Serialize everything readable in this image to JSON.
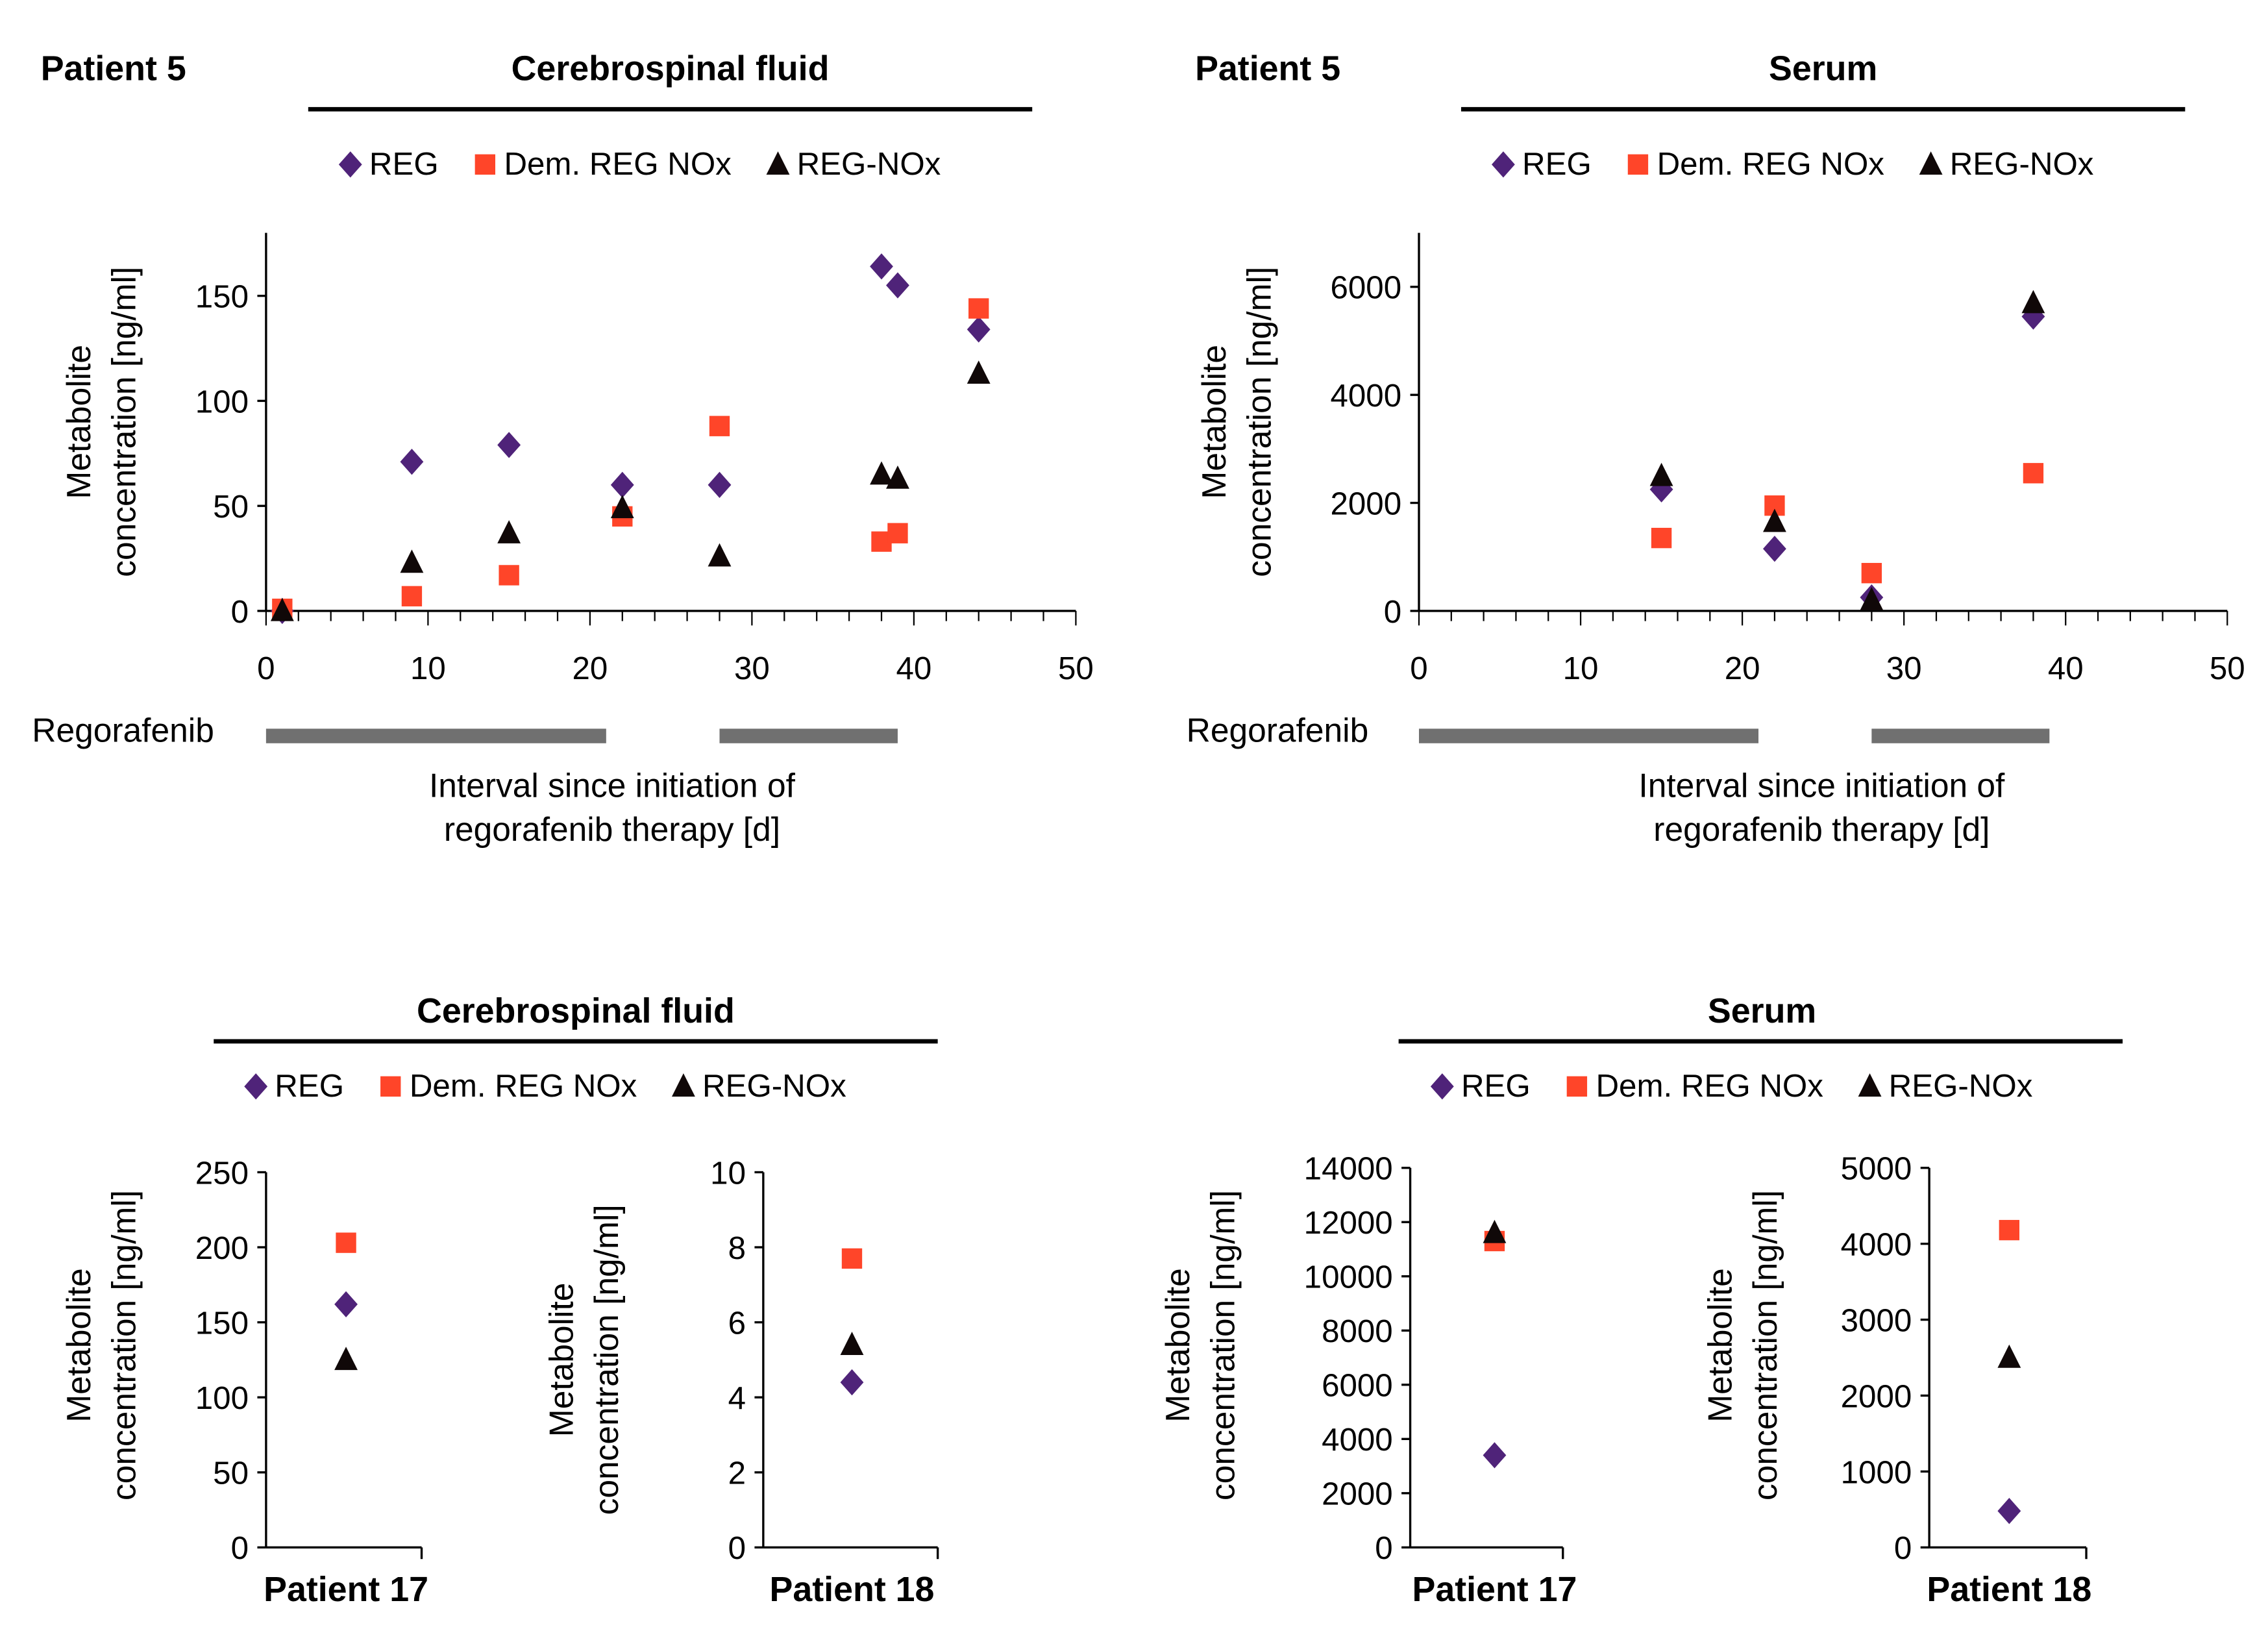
{
  "panels": {
    "top_left": {
      "patient": "Patient 5",
      "title": "Cerebrospinal fluid"
    },
    "top_right": {
      "patient": "Patient 5",
      "title": "Serum"
    },
    "bottom_left": {
      "title": "Cerebrospinal fluid"
    },
    "bottom_right": {
      "title": "Serum"
    }
  },
  "legend": [
    "REG",
    "Dem. REG NOx",
    "REG-NOx"
  ],
  "colors": {
    "REG": "#4F2379",
    "Dem. REG NOx": "#FF4529",
    "REG-NOx": "#100808"
  },
  "ylabel": [
    "Metabolite",
    "concentration [ng/ml]"
  ],
  "xlabel": [
    "Interval since initiation of",
    "regorafenib therapy [d]"
  ],
  "regorafenib_label": "Regorafenib",
  "chart_data": [
    {
      "type": "scatter",
      "panel": "Patient 5 – Cerebrospinal fluid",
      "xlim": [
        0,
        50
      ],
      "xticks": [
        0,
        10,
        20,
        30,
        40,
        50
      ],
      "ylim": [
        0,
        180
      ],
      "yticks": [
        0,
        50,
        100,
        150
      ],
      "regorafenib_periods": [
        [
          0,
          21
        ],
        [
          28,
          39
        ]
      ],
      "series": [
        {
          "name": "REG",
          "x": [
            1,
            9,
            15,
            22,
            28,
            38,
            39,
            44
          ],
          "y": [
            0,
            71,
            79,
            60,
            60,
            164,
            155,
            134
          ]
        },
        {
          "name": "Dem. REG NOx",
          "x": [
            1,
            9,
            15,
            22,
            28,
            38,
            39,
            44
          ],
          "y": [
            1,
            7,
            17,
            45,
            88,
            33,
            37,
            144
          ]
        },
        {
          "name": "REG-NOx",
          "x": [
            1,
            9,
            15,
            22,
            28,
            38,
            39,
            44
          ],
          "y": [
            0,
            23,
            37,
            49,
            26,
            65,
            63,
            113
          ]
        }
      ]
    },
    {
      "type": "scatter",
      "panel": "Patient 5 – Serum",
      "xlim": [
        0,
        50
      ],
      "xticks": [
        0,
        10,
        20,
        30,
        40,
        50
      ],
      "ylim": [
        0,
        7000
      ],
      "yticks": [
        0,
        2000,
        4000,
        6000
      ],
      "regorafenib_periods": [
        [
          0,
          21
        ],
        [
          28,
          39
        ]
      ],
      "series": [
        {
          "name": "REG",
          "x": [
            15,
            22,
            28,
            38
          ],
          "y": [
            2250,
            1150,
            250,
            5450
          ]
        },
        {
          "name": "Dem. REG NOx",
          "x": [
            15,
            22,
            28,
            38
          ],
          "y": [
            1350,
            1950,
            700,
            2550
          ]
        },
        {
          "name": "REG-NOx",
          "x": [
            15,
            22,
            28,
            38
          ],
          "y": [
            2500,
            1650,
            200,
            5700
          ]
        }
      ]
    },
    {
      "type": "scatter",
      "panel": "Cerebrospinal fluid – Patient 17",
      "category": "Patient 17",
      "ylim": [
        0,
        250
      ],
      "yticks": [
        0,
        50,
        100,
        150,
        200,
        250
      ],
      "series": [
        {
          "name": "REG",
          "y": [
            162
          ]
        },
        {
          "name": "Dem. REG NOx",
          "y": [
            203
          ]
        },
        {
          "name": "REG-NOx",
          "y": [
            125
          ]
        }
      ]
    },
    {
      "type": "scatter",
      "panel": "Cerebrospinal fluid – Patient 18",
      "category": "Patient 18",
      "ylim": [
        0,
        10
      ],
      "yticks": [
        0,
        2,
        4,
        6,
        8,
        10
      ],
      "series": [
        {
          "name": "REG",
          "y": [
            4.4
          ]
        },
        {
          "name": "Dem. REG NOx",
          "y": [
            7.7
          ]
        },
        {
          "name": "REG-NOx",
          "y": [
            5.4
          ]
        }
      ]
    },
    {
      "type": "scatter",
      "panel": "Serum – Patient 17",
      "category": "Patient 17",
      "ylim": [
        0,
        14000
      ],
      "yticks": [
        0,
        2000,
        4000,
        6000,
        8000,
        10000,
        12000,
        14000
      ],
      "series": [
        {
          "name": "REG",
          "y": [
            3400
          ]
        },
        {
          "name": "Dem. REG NOx",
          "y": [
            11300
          ]
        },
        {
          "name": "REG-NOx",
          "y": [
            11600
          ]
        }
      ]
    },
    {
      "type": "scatter",
      "panel": "Serum – Patient 18",
      "category": "Patient 18",
      "ylim": [
        0,
        5000
      ],
      "yticks": [
        0,
        1000,
        2000,
        3000,
        4000,
        5000
      ],
      "series": [
        {
          "name": "REG",
          "y": [
            480
          ]
        },
        {
          "name": "Dem. REG NOx",
          "y": [
            4180
          ]
        },
        {
          "name": "REG-NOx",
          "y": [
            2500
          ]
        }
      ]
    }
  ]
}
